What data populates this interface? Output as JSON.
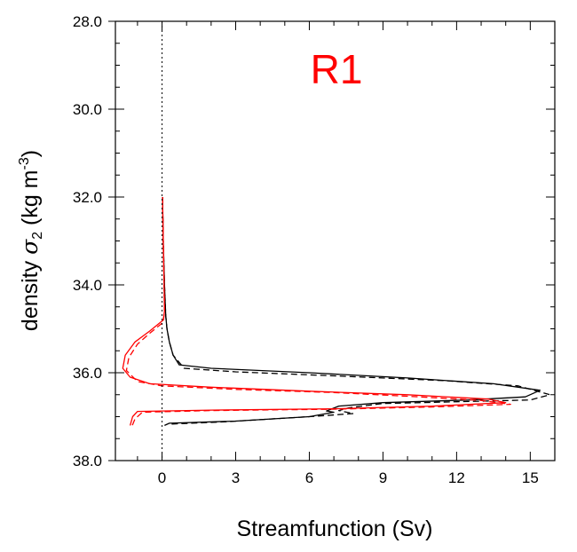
{
  "chart_data": {
    "type": "line",
    "title": "R1",
    "xlabel": "Streamfunction (Sv)",
    "ylabel": {
      "prefix": "density ",
      "symbol": "σ",
      "subscript": "2",
      "unit_open": " (kg m",
      "unit_exp": "-3",
      "unit_close": ")"
    },
    "xlim": [
      -1.9,
      16.0
    ],
    "ylim": [
      38.0,
      28.0
    ],
    "y_inverted": true,
    "xticks": [
      0,
      3,
      6,
      9,
      12,
      15
    ],
    "xtick_labels": [
      "0",
      "3",
      "6",
      "9",
      "12",
      "15"
    ],
    "yticks": [
      28.0,
      30.0,
      32.0,
      34.0,
      36.0,
      38.0
    ],
    "ytick_labels": [
      "28.0",
      "30.0",
      "32.0",
      "34.0",
      "36.0",
      "38.0"
    ],
    "zero_reference_line": {
      "x": 0,
      "style": "dotted"
    },
    "grid": false,
    "legend": "none",
    "series": [
      {
        "color": "#000000",
        "dash": "solid",
        "points": [
          [
            0.02,
            32.0
          ],
          [
            0.05,
            33.0
          ],
          [
            0.1,
            34.0
          ],
          [
            0.15,
            34.7
          ],
          [
            0.2,
            35.0
          ],
          [
            0.3,
            35.3
          ],
          [
            0.45,
            35.6
          ],
          [
            0.7,
            35.82
          ],
          [
            2.0,
            35.9
          ],
          [
            6.0,
            36.0
          ],
          [
            10.0,
            36.12
          ],
          [
            13.5,
            36.25
          ],
          [
            15.4,
            36.4
          ],
          [
            14.8,
            36.55
          ],
          [
            12.5,
            36.62
          ],
          [
            9.0,
            36.68
          ],
          [
            7.2,
            36.76
          ],
          [
            6.7,
            36.87
          ],
          [
            7.0,
            36.9
          ],
          [
            6.0,
            37.0
          ],
          [
            3.0,
            37.1
          ],
          [
            0.3,
            37.15
          ],
          [
            0.1,
            37.2
          ]
        ]
      },
      {
        "color": "#000000",
        "dash": "dashed",
        "points": [
          [
            0.02,
            32.0
          ],
          [
            0.05,
            33.0
          ],
          [
            0.1,
            34.0
          ],
          [
            0.15,
            34.7
          ],
          [
            0.2,
            35.0
          ],
          [
            0.3,
            35.3
          ],
          [
            0.45,
            35.6
          ],
          [
            0.9,
            35.9
          ],
          [
            3.0,
            35.98
          ],
          [
            7.0,
            36.07
          ],
          [
            11.5,
            36.18
          ],
          [
            14.5,
            36.3
          ],
          [
            15.8,
            36.5
          ],
          [
            15.0,
            36.62
          ],
          [
            12.0,
            36.66
          ],
          [
            9.0,
            36.7
          ],
          [
            7.6,
            36.8
          ],
          [
            7.2,
            36.86
          ],
          [
            7.8,
            36.93
          ],
          [
            6.0,
            37.0
          ],
          [
            2.5,
            37.12
          ],
          [
            0.3,
            37.17
          ]
        ]
      },
      {
        "color": "#ff0000",
        "dash": "solid",
        "points": [
          [
            0.02,
            32.0
          ],
          [
            0.05,
            33.0
          ],
          [
            0.08,
            34.0
          ],
          [
            0.1,
            34.6
          ],
          [
            0.05,
            34.8
          ],
          [
            -0.5,
            35.05
          ],
          [
            -1.1,
            35.3
          ],
          [
            -1.5,
            35.6
          ],
          [
            -1.6,
            35.9
          ],
          [
            -1.3,
            36.1
          ],
          [
            -0.5,
            36.25
          ],
          [
            2.0,
            36.33
          ],
          [
            6.0,
            36.42
          ],
          [
            10.0,
            36.5
          ],
          [
            13.3,
            36.6
          ],
          [
            14.0,
            36.68
          ],
          [
            11.0,
            36.76
          ],
          [
            7.0,
            36.82
          ],
          [
            2.0,
            36.85
          ],
          [
            -1.0,
            36.88
          ],
          [
            -1.2,
            37.0
          ],
          [
            -1.3,
            37.2
          ]
        ]
      },
      {
        "color": "#ff0000",
        "dash": "dashed",
        "points": [
          [
            0.02,
            32.0
          ],
          [
            0.05,
            33.0
          ],
          [
            0.08,
            34.0
          ],
          [
            0.1,
            34.6
          ],
          [
            0.05,
            34.85
          ],
          [
            -0.5,
            35.1
          ],
          [
            -1.0,
            35.35
          ],
          [
            -1.35,
            35.65
          ],
          [
            -1.45,
            35.95
          ],
          [
            -1.0,
            36.2
          ],
          [
            0.0,
            36.3
          ],
          [
            3.0,
            36.38
          ],
          [
            7.0,
            36.45
          ],
          [
            10.5,
            36.55
          ],
          [
            13.0,
            36.63
          ],
          [
            14.2,
            36.72
          ],
          [
            11.0,
            36.78
          ],
          [
            7.0,
            36.83
          ],
          [
            2.0,
            36.86
          ],
          [
            -0.8,
            36.9
          ],
          [
            -1.1,
            37.05
          ],
          [
            -1.25,
            37.25
          ]
        ]
      }
    ]
  }
}
